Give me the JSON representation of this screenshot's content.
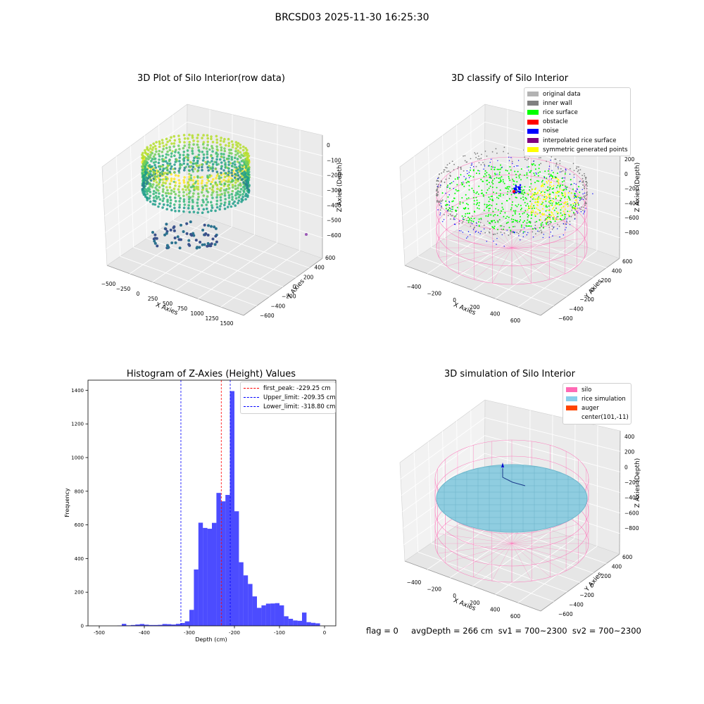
{
  "figure": {
    "suptitle": "BRCSD03 2025-11-30 16:25:30"
  },
  "panels": {
    "raw": {
      "title": "3D Plot of Silo Interior(row data)",
      "xlabel": "X Axies",
      "ylabel": "Y Axies",
      "zlabel": "Z Axies (Depth)",
      "xticks": [
        "−500",
        "−250",
        "0",
        "250",
        "500",
        "750",
        "1000",
        "1250",
        "1500"
      ],
      "yticks": [
        "−600",
        "−400",
        "−200",
        "0",
        "200",
        "400",
        "600"
      ],
      "zticks": [
        "0",
        "−100",
        "−200",
        "−300",
        "−400",
        "−500",
        "−600"
      ],
      "colormap": "viridis"
    },
    "classify": {
      "title": "3D classify of Silo Interior",
      "xlabel": "X Axies",
      "ylabel": "Y Axies",
      "zlabel": "Z Axies (Depth)",
      "xticks": [
        "−400",
        "−200",
        "0",
        "200",
        "400",
        "600"
      ],
      "yticks": [
        "−600",
        "−400",
        "−200",
        "0",
        "200",
        "400",
        "600"
      ],
      "zticks": [
        "200",
        "0",
        "−200",
        "−400",
        "−600",
        "−800"
      ],
      "legend": [
        {
          "label": "original data",
          "color": "#b3b3b3"
        },
        {
          "label": "inner wall",
          "color": "#808080"
        },
        {
          "label": "rice surface",
          "color": "#00ff00"
        },
        {
          "label": "obstacle",
          "color": "#ff0000"
        },
        {
          "label": "noise",
          "color": "#0000ff"
        },
        {
          "label": "interpolated rice surface",
          "color": "#800080"
        },
        {
          "label": "symmetric generated points",
          "color": "#ffff00"
        }
      ]
    },
    "simulation": {
      "title": "3D simulation of Silo Interior",
      "xlabel": "X Axies",
      "ylabel": "Y Axies",
      "zlabel": "Z Axies (Depth)",
      "xticks": [
        "−400",
        "−200",
        "0",
        "200",
        "400",
        "600"
      ],
      "yticks": [
        "−600",
        "−400",
        "−200",
        "0",
        "200",
        "400",
        "600"
      ],
      "zticks": [
        "400",
        "200",
        "0",
        "−200",
        "−400",
        "−600",
        "−800"
      ],
      "legend": [
        {
          "label": "silo",
          "color": "#ff69b4"
        },
        {
          "label": "rice simulation",
          "color": "#87ceeb"
        },
        {
          "label": "auger",
          "color": "#ff4500"
        },
        {
          "label": "center(101,-11)",
          "color": ""
        }
      ]
    }
  },
  "status": {
    "text": "flag = 0     avgDepth = 266 cm  sv1 = 700~2300  sv2 = 700~2300"
  },
  "chart_data": [
    {
      "type": "bar",
      "title": "Histogram of Z-Axies (Height) Values",
      "xlabel": "Depth (cm)",
      "ylabel": "Frequency",
      "xlim": [
        -525,
        25
      ],
      "ylim": [
        0,
        1460
      ],
      "xticks": [
        -500,
        -400,
        -300,
        -200,
        -100,
        0
      ],
      "yticks": [
        0,
        200,
        400,
        600,
        800,
        1000,
        1200,
        1400
      ],
      "bin_start": -470,
      "bin_width": 10,
      "bar_color": "#0000ff",
      "bar_opacity": 0.7,
      "values": [
        0,
        2,
        12,
        3,
        5,
        8,
        11,
        7,
        5,
        5,
        6,
        11,
        10,
        8,
        12,
        17,
        27,
        95,
        335,
        613,
        582,
        577,
        612,
        790,
        740,
        778,
        1395,
        681,
        378,
        300,
        249,
        175,
        107,
        122,
        132,
        133,
        135,
        122,
        57,
        42,
        32,
        30,
        79,
        22,
        18,
        15
      ],
      "vlines": [
        {
          "label": "first_peak: -229.25 cm",
          "x": -229.25,
          "color": "#ff0000",
          "style": "dashed"
        },
        {
          "label": "Upper_limit: -209.35 cm",
          "x": -209.35,
          "color": "#0000ff",
          "style": "dashed"
        },
        {
          "label": "Lower_limit: -318.80 cm",
          "x": -318.8,
          "color": "#0000ff",
          "style": "dashed"
        }
      ],
      "legend_position": "top-right"
    }
  ]
}
